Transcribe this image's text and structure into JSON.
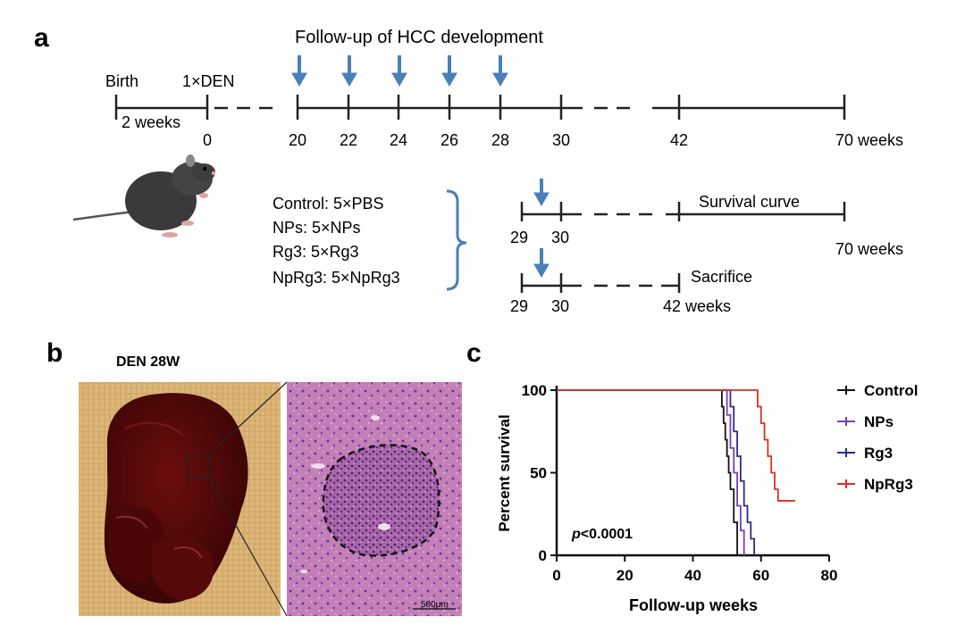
{
  "panel_a": {
    "label": "a",
    "title": "Follow-up of HCC development",
    "birth": "Birth",
    "den": "1×DEN",
    "two_weeks": "2 weeks",
    "ticks": [
      "0",
      "20",
      "22",
      "24",
      "26",
      "28",
      "30",
      "42"
    ],
    "end_label": "70 weeks",
    "groups": [
      "Control: 5×PBS",
      "NPs: 5×NPs",
      "Rg3: 5×Rg3",
      "NpRg3: 5×NpRg3"
    ],
    "survival_curve_label": "Survival curve",
    "survival_ticks": [
      "29",
      "30"
    ],
    "survival_end": "70 weeks",
    "sacrifice_label": "Sacrifice",
    "sacrifice_ticks": [
      "29",
      "30"
    ],
    "sacrifice_end": "42 weeks",
    "arrow_color": "#4a7fb8"
  },
  "panel_b": {
    "label": "b",
    "title": "DEN 28W",
    "scale_bar": "500μm"
  },
  "panel_c": {
    "label": "c",
    "pvalue_p": "p",
    "pvalue_rest": "<0.0001"
  },
  "chart_data": {
    "type": "line",
    "step": true,
    "title": "",
    "xlabel": "Follow-up weeks",
    "ylabel": "Percent survival",
    "xlim": [
      0,
      80
    ],
    "ylim": [
      0,
      100
    ],
    "xticks": [
      0,
      20,
      40,
      60,
      80
    ],
    "yticks": [
      0,
      50,
      100
    ],
    "legend_position": "right",
    "series": [
      {
        "name": "Control",
        "color": "#111111",
        "x": [
          0,
          48,
          48.5,
          49,
          49.5,
          50,
          50.5,
          51,
          52,
          53
        ],
        "y": [
          100,
          100,
          90,
          80,
          70,
          60,
          50,
          40,
          20,
          0
        ]
      },
      {
        "name": "NPs",
        "color": "#7a3fb0",
        "x": [
          0,
          49,
          50,
          51,
          52,
          53,
          54,
          55
        ],
        "y": [
          100,
          100,
          85,
          65,
          50,
          30,
          15,
          0
        ]
      },
      {
        "name": "Rg3",
        "color": "#2b2b8f",
        "x": [
          0,
          50,
          51,
          52,
          53,
          54,
          55,
          56,
          57,
          58
        ],
        "y": [
          100,
          100,
          90,
          75,
          60,
          45,
          30,
          20,
          10,
          0
        ]
      },
      {
        "name": "NpRg3",
        "color": "#d9321f",
        "x": [
          0,
          58,
          59,
          60,
          61,
          62,
          63,
          64,
          65,
          70
        ],
        "y": [
          100,
          100,
          90,
          80,
          70,
          60,
          50,
          40,
          33,
          33
        ]
      }
    ]
  }
}
